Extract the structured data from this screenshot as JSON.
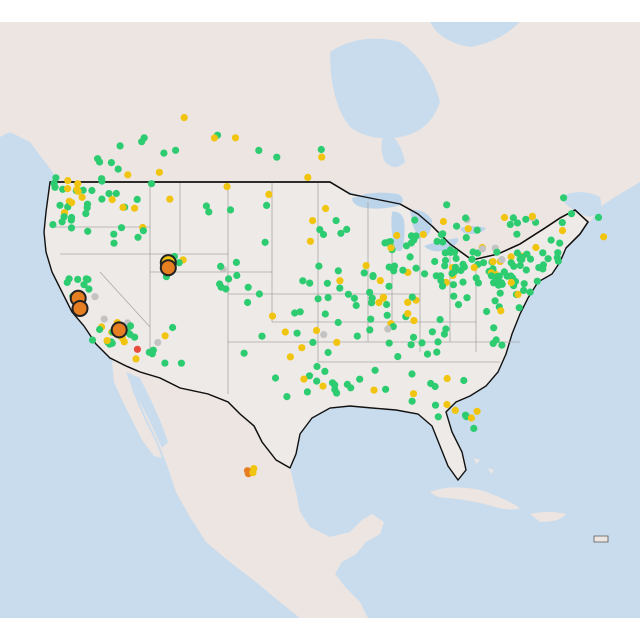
{
  "map": {
    "colors": {
      "water": "#c9dced",
      "land": "#ede5e1",
      "us_land": "#eeeae7",
      "border": "#111111",
      "state_line": "#a7a7a7",
      "lake": "#bcd4ea"
    },
    "legend_levels": {
      "good": "#2ecc71",
      "moderate": "#f1c40f",
      "unhealthy_sensitive": "#e67e22",
      "unhealthy": "#e74c3c",
      "no_data": "#c3c3c3"
    },
    "highlighted_stations": [
      {
        "lon": -121.9,
        "lat": 37.6,
        "level": "unhealthy_sensitive"
      },
      {
        "lon": -121.7,
        "lat": 36.6,
        "level": "unhealthy_sensitive"
      },
      {
        "lon": -112.0,
        "lat": 41.1,
        "level": "moderate"
      },
      {
        "lon": -112.0,
        "lat": 40.6,
        "level": "unhealthy_sensitive"
      },
      {
        "lon": -117.4,
        "lat": 34.5,
        "level": "unhealthy_sensitive"
      }
    ],
    "mexico_cluster": [
      {
        "lon": -103.3,
        "lat": 20.7,
        "level": "unhealthy_sensitive"
      },
      {
        "lon": -103.2,
        "lat": 20.4,
        "level": "unhealthy_sensitive"
      },
      {
        "lon": -102.6,
        "lat": 20.9,
        "level": "moderate"
      },
      {
        "lon": -102.7,
        "lat": 20.5,
        "level": "moderate"
      }
    ],
    "red_station": {
      "lon": -115.4,
      "lat": 32.6,
      "level": "unhealthy"
    }
  }
}
